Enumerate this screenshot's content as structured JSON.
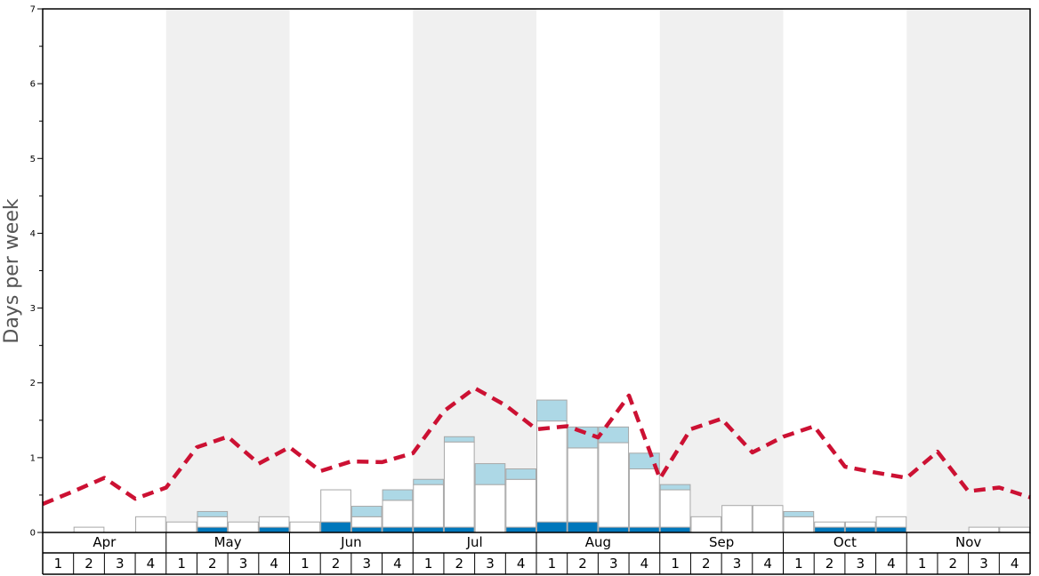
{
  "chart_data": {
    "type": "bar",
    "ylabel": "Days per week",
    "ylim": [
      0,
      7
    ],
    "yticks": [
      "0",
      "1",
      "2",
      "3",
      "4",
      "5",
      "6",
      "7"
    ],
    "months": [
      "Apr",
      "May",
      "Jun",
      "Jul",
      "Aug",
      "Sep",
      "Oct",
      "Nov"
    ],
    "weeks_per_month": [
      "1",
      "2",
      "3",
      "4"
    ],
    "stacked": true,
    "series": [
      {
        "color": "#0077bb",
        "values": [
          0,
          0,
          0,
          0,
          0,
          0.07,
          0,
          0.07,
          0,
          0.14,
          0.07,
          0.07,
          0.07,
          0.07,
          0,
          0.07,
          0.14,
          0.14,
          0.07,
          0.07,
          0.07,
          0,
          0,
          0,
          0,
          0.07,
          0.07,
          0.07,
          0,
          0,
          0,
          0
        ]
      },
      {
        "color": "#ffffff",
        "values": [
          0,
          0.07,
          0,
          0.21,
          0.14,
          0.14,
          0.14,
          0.14,
          0.14,
          0.43,
          0.14,
          0.36,
          0.57,
          1.14,
          0.64,
          0.64,
          1.35,
          0.99,
          1.13,
          0.78,
          0.5,
          0.21,
          0.36,
          0.36,
          0.21,
          0.07,
          0.07,
          0.14,
          0,
          0,
          0.07,
          0.07
        ]
      },
      {
        "color": "#add8e6",
        "values": [
          0,
          0,
          0,
          0,
          0,
          0.07,
          0,
          0,
          0,
          0,
          0.14,
          0.14,
          0.07,
          0.07,
          0.28,
          0.14,
          0.28,
          0.28,
          0.21,
          0.21,
          0.07,
          0,
          0,
          0,
          0.07,
          0,
          0,
          0,
          0,
          0,
          0,
          0
        ]
      }
    ],
    "line": {
      "color": "#cc1133",
      "style": "dashed",
      "values": [
        0.38,
        0.55,
        0.73,
        0.45,
        0.6,
        1.14,
        1.28,
        0.92,
        1.14,
        0.82,
        0.95,
        0.94,
        1.06,
        1.62,
        1.93,
        1.7,
        1.38,
        1.42,
        1.27,
        1.83,
        0.72,
        1.38,
        1.52,
        1.07,
        1.28,
        1.42,
        0.88,
        0.8,
        0.73,
        1.08,
        0.55,
        0.6,
        0.47
      ]
    },
    "shaded_months": [
      "May",
      "Jul",
      "Sep",
      "Nov"
    ],
    "legend": "none"
  }
}
